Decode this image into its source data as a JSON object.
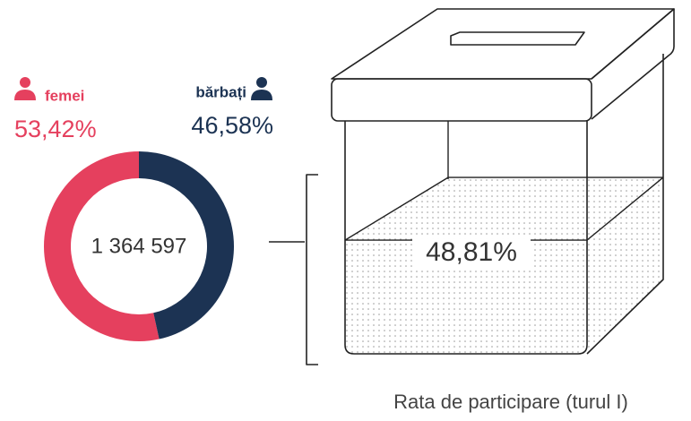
{
  "chart_data": [
    {
      "type": "donut",
      "categories": [
        "femei",
        "bărbați"
      ],
      "values": [
        53.42,
        46.58
      ],
      "value_labels": [
        "53,42%",
        "46,58%"
      ],
      "colors": [
        "#e5405e",
        "#1c3353"
      ],
      "center_label": "1 364 597"
    },
    {
      "type": "ballot-fill",
      "title": "Rata de participare (turul I)",
      "value": 48.81,
      "value_label": "48,81%",
      "ylim": [
        0,
        100
      ]
    }
  ]
}
